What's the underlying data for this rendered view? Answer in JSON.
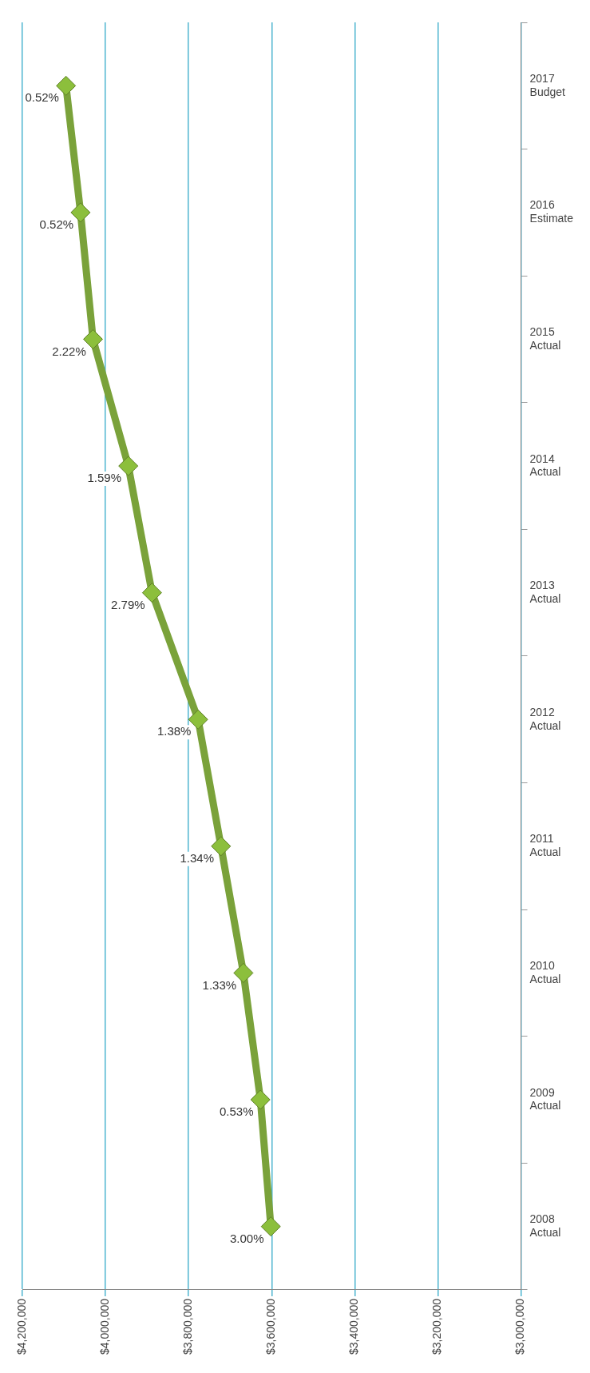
{
  "chart_data": {
    "type": "line",
    "orientation": "horizontal",
    "categories": [
      "2017 Budget",
      "2016 Estimate",
      "2015 Actual",
      "2014 Actual",
      "2013 Actual",
      "2012 Actual",
      "2011 Actual",
      "2010 Actual",
      "2009 Actual",
      "2008 Actual"
    ],
    "series": [
      {
        "color": "#7aa23a",
        "values": [
          4095000,
          4060000,
          4030000,
          3945000,
          3888000,
          3777000,
          3722000,
          3668000,
          3627000,
          3602000
        ]
      }
    ],
    "xlim": [
      4200000,
      3000000
    ],
    "xticks": [
      {
        "value": 4200000,
        "label": "$4,200,000"
      },
      {
        "value": 4000000,
        "label": "$4,000,000"
      },
      {
        "value": 3800000,
        "label": "$3,800,000"
      },
      {
        "value": 3600000,
        "label": "$3,600,000"
      },
      {
        "value": 3400000,
        "label": "$3,400,000"
      },
      {
        "value": 3200000,
        "label": "$3,200,000"
      },
      {
        "value": 3000000,
        "label": "$3,000,000"
      }
    ],
    "annotations": [
      {
        "text": "3.00%",
        "x": 3602000,
        "y": "2008 Actual"
      },
      {
        "text": "0.53%",
        "x": 3627000,
        "y": "2009 Actual"
      },
      {
        "text": "1.33%",
        "x": 3668000,
        "y": "2010 Actual"
      },
      {
        "text": "1.34%",
        "x": 3722000,
        "y": "2011 Actual"
      },
      {
        "text": "1.38%",
        "x": 3777000,
        "y": "2012 Actual"
      },
      {
        "text": "2.79%",
        "x": 3888000,
        "y": "2013 Actual"
      },
      {
        "text": "1.59%",
        "x": 3945000,
        "y": "2014 Actual"
      },
      {
        "text": "2.22%",
        "x": 4030000,
        "y": "2015 Actual"
      },
      {
        "text": "0.52%",
        "x": 4060000,
        "y": "2016 Estimate"
      },
      {
        "text": "0.52%",
        "x": 4095000,
        "y": "2017 Budget"
      }
    ],
    "grid": "x",
    "marker": "diamond",
    "legend": false
  }
}
